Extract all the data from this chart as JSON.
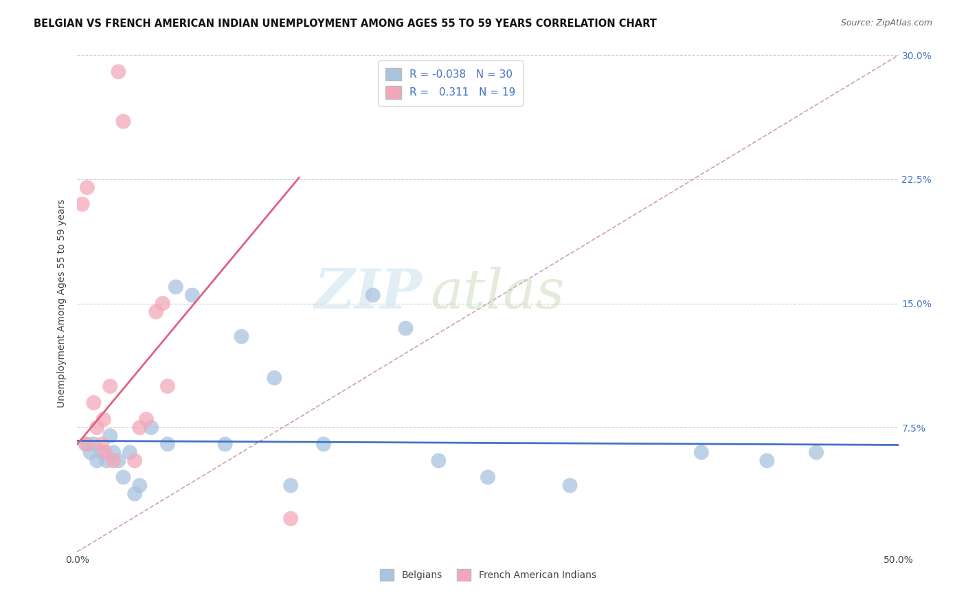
{
  "title": "BELGIAN VS FRENCH AMERICAN INDIAN UNEMPLOYMENT AMONG AGES 55 TO 59 YEARS CORRELATION CHART",
  "source": "Source: ZipAtlas.com",
  "ylabel": "Unemployment Among Ages 55 to 59 years",
  "xlim": [
    0.0,
    0.5
  ],
  "ylim": [
    0.0,
    0.3
  ],
  "yticks": [
    0.0,
    0.075,
    0.15,
    0.225,
    0.3
  ],
  "ytick_labels_right": [
    "",
    "7.5%",
    "15.0%",
    "22.5%",
    "30.0%"
  ],
  "belgian_R": -0.038,
  "belgian_N": 30,
  "french_R": 0.311,
  "french_N": 19,
  "belgian_color": "#a8c4e0",
  "french_color": "#f4a7b9",
  "belgian_line_color": "#4472c4",
  "french_line_color": "#e06080",
  "diagonal_color": "#d0a0b0",
  "watermark_zip": "ZIP",
  "watermark_atlas": "atlas",
  "background_color": "#ffffff",
  "belgian_x": [
    0.005,
    0.008,
    0.01,
    0.012,
    0.015,
    0.018,
    0.02,
    0.022,
    0.025,
    0.028,
    0.032,
    0.035,
    0.038,
    0.045,
    0.055,
    0.06,
    0.07,
    0.09,
    0.1,
    0.12,
    0.13,
    0.15,
    0.18,
    0.2,
    0.22,
    0.25,
    0.3,
    0.38,
    0.42,
    0.45
  ],
  "belgian_y": [
    0.065,
    0.06,
    0.065,
    0.055,
    0.06,
    0.055,
    0.07,
    0.06,
    0.055,
    0.045,
    0.06,
    0.035,
    0.04,
    0.075,
    0.065,
    0.16,
    0.155,
    0.065,
    0.13,
    0.105,
    0.04,
    0.065,
    0.155,
    0.135,
    0.055,
    0.045,
    0.04,
    0.06,
    0.055,
    0.06
  ],
  "french_x": [
    0.003,
    0.006,
    0.006,
    0.01,
    0.012,
    0.015,
    0.016,
    0.017,
    0.02,
    0.022,
    0.025,
    0.028,
    0.035,
    0.038,
    0.042,
    0.048,
    0.052,
    0.055,
    0.13
  ],
  "french_y": [
    0.21,
    0.22,
    0.065,
    0.09,
    0.075,
    0.065,
    0.08,
    0.06,
    0.1,
    0.055,
    0.29,
    0.26,
    0.055,
    0.075,
    0.08,
    0.145,
    0.15,
    0.1,
    0.02
  ],
  "french_line_x_start": 0.0,
  "french_line_x_end": 0.135,
  "belgian_line_x_start": 0.0,
  "belgian_line_x_end": 0.5
}
